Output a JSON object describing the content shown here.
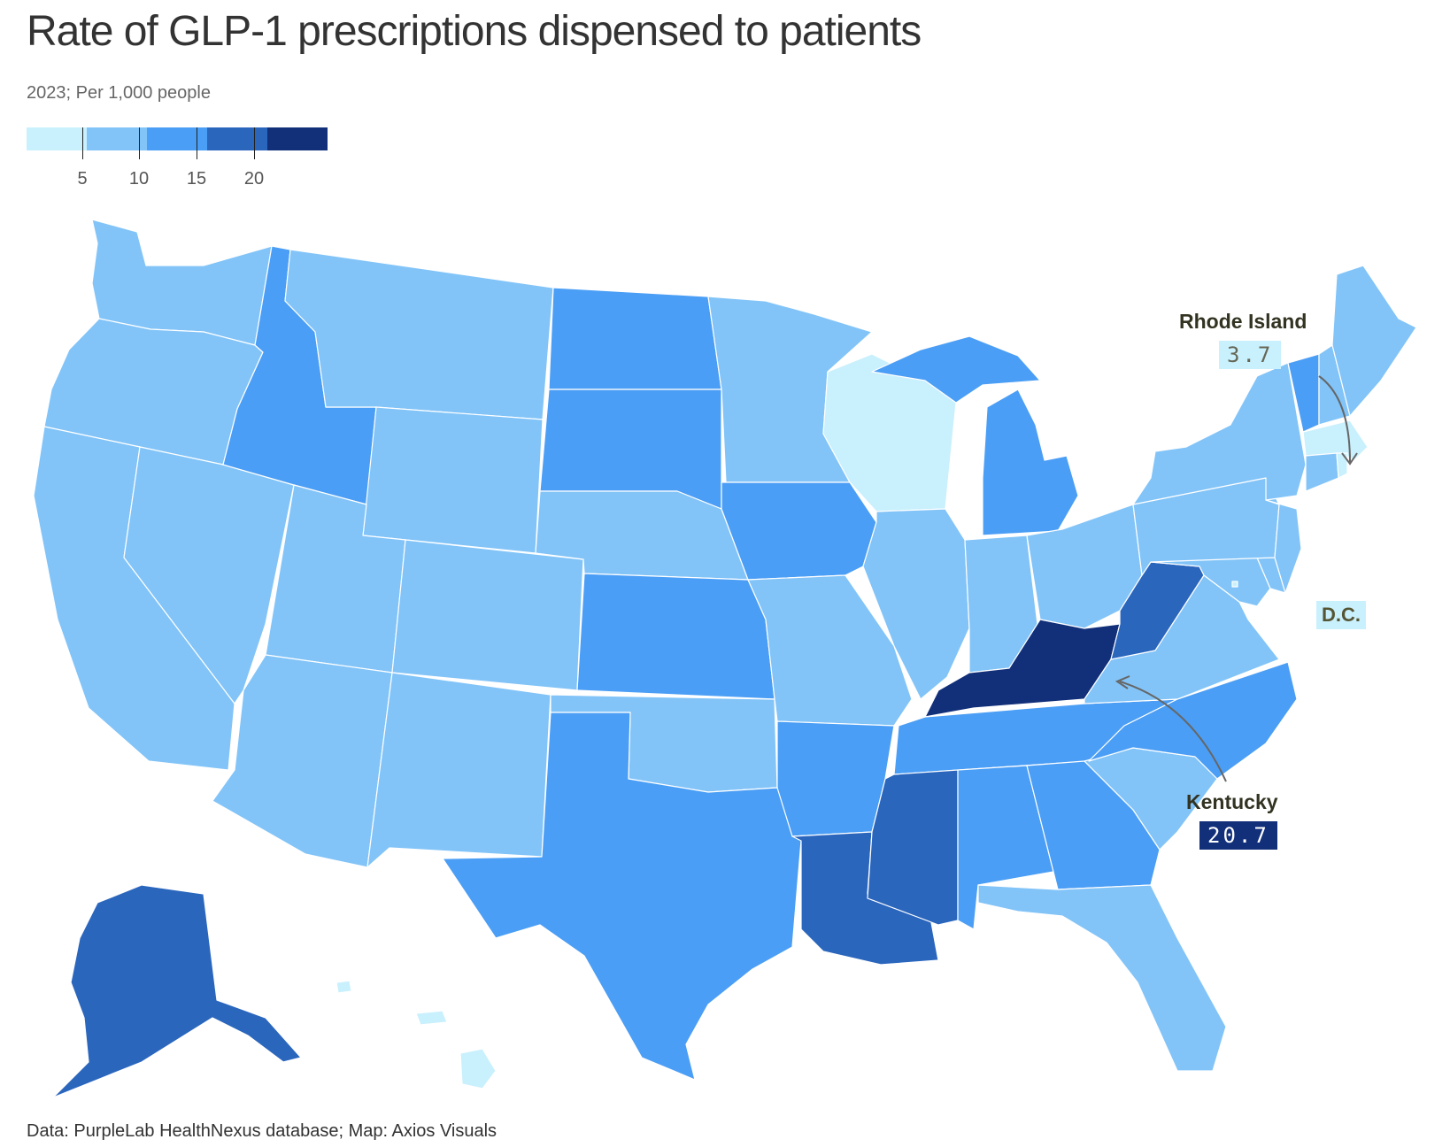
{
  "title": "Rate of GLP-1 prescriptions dispensed to patients",
  "subtitle": "2023; Per 1,000 people",
  "legend": {
    "bins": [
      "#c9f0fd",
      "#82c4f8",
      "#4b9ef5",
      "#2b66bd",
      "#12307a"
    ],
    "ticks": [
      "5",
      "10",
      "15",
      "20"
    ]
  },
  "colors": {
    "state_border": "#ffffff",
    "arrow": "#666666",
    "dc_highlight": "#c9f0fd"
  },
  "callouts": {
    "ri_name": "Rhode Island",
    "ri_value": "3.7",
    "ky_name": "Kentucky",
    "ky_value": "20.7",
    "dc_name": "D.C."
  },
  "chart_data": {
    "type": "choropleth",
    "title": "Rate of GLP-1 prescriptions dispensed to patients",
    "subtitle": "2023; Per 1,000 people",
    "legend_breaks": [
      5,
      10,
      15,
      20
    ],
    "states": [
      {
        "state": "Washington",
        "bin": 1
      },
      {
        "state": "Oregon",
        "bin": 1
      },
      {
        "state": "California",
        "bin": 1
      },
      {
        "state": "Nevada",
        "bin": 1
      },
      {
        "state": "Idaho",
        "bin": 2
      },
      {
        "state": "Montana",
        "bin": 1
      },
      {
        "state": "Wyoming",
        "bin": 1
      },
      {
        "state": "Utah",
        "bin": 1
      },
      {
        "state": "Arizona",
        "bin": 1
      },
      {
        "state": "Colorado",
        "bin": 1
      },
      {
        "state": "New Mexico",
        "bin": 1
      },
      {
        "state": "North Dakota",
        "bin": 2
      },
      {
        "state": "South Dakota",
        "bin": 2
      },
      {
        "state": "Nebraska",
        "bin": 1
      },
      {
        "state": "Kansas",
        "bin": 2
      },
      {
        "state": "Oklahoma",
        "bin": 1
      },
      {
        "state": "Texas",
        "bin": 2
      },
      {
        "state": "Minnesota",
        "bin": 1
      },
      {
        "state": "Iowa",
        "bin": 2
      },
      {
        "state": "Missouri",
        "bin": 1
      },
      {
        "state": "Arkansas",
        "bin": 2
      },
      {
        "state": "Louisiana",
        "bin": 3
      },
      {
        "state": "Wisconsin",
        "bin": 0
      },
      {
        "state": "Illinois",
        "bin": 1
      },
      {
        "state": "Michigan",
        "bin": 2
      },
      {
        "state": "Indiana",
        "bin": 1
      },
      {
        "state": "Ohio",
        "bin": 1
      },
      {
        "state": "Kentucky",
        "bin": 4,
        "value": 20.7
      },
      {
        "state": "Tennessee",
        "bin": 2
      },
      {
        "state": "Mississippi",
        "bin": 3
      },
      {
        "state": "Alabama",
        "bin": 2
      },
      {
        "state": "Georgia",
        "bin": 2
      },
      {
        "state": "Florida",
        "bin": 1
      },
      {
        "state": "South Carolina",
        "bin": 1
      },
      {
        "state": "North Carolina",
        "bin": 2
      },
      {
        "state": "Virginia",
        "bin": 1
      },
      {
        "state": "West Virginia",
        "bin": 3
      },
      {
        "state": "Maryland",
        "bin": 1
      },
      {
        "state": "Delaware",
        "bin": 1
      },
      {
        "state": "Pennsylvania",
        "bin": 1
      },
      {
        "state": "New Jersey",
        "bin": 1
      },
      {
        "state": "New York",
        "bin": 1
      },
      {
        "state": "Connecticut",
        "bin": 1
      },
      {
        "state": "Rhode Island",
        "bin": 0,
        "value": 3.7
      },
      {
        "state": "Massachusetts",
        "bin": 0
      },
      {
        "state": "Vermont",
        "bin": 2
      },
      {
        "state": "New Hampshire",
        "bin": 1
      },
      {
        "state": "Maine",
        "bin": 1
      },
      {
        "state": "Alaska",
        "bin": 3
      },
      {
        "state": "Hawaii",
        "bin": 0
      },
      {
        "state": "District of Columbia",
        "bin": 0
      }
    ]
  },
  "source": "Data: PurpleLab HealthNexus database; Map: Axios Visuals"
}
